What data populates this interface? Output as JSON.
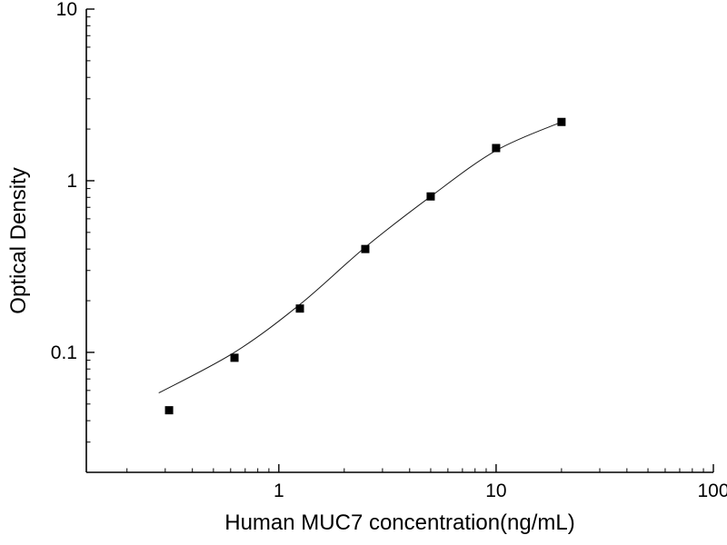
{
  "chart_data": {
    "type": "scatter",
    "title": "",
    "xlabel": "Human MUC7 concentration(ng/mL)",
    "ylabel": "Optical Density",
    "x_scale": "log",
    "y_scale": "log",
    "xlim": [
      0.13,
      100
    ],
    "ylim": [
      0.02,
      10
    ],
    "x_major_ticks": [
      1,
      10,
      100
    ],
    "y_major_ticks": [
      0.1,
      1,
      10
    ],
    "x_tick_labels": [
      "1",
      "10",
      "100"
    ],
    "y_tick_labels": [
      "10",
      "1",
      "0.1"
    ],
    "grid": false,
    "legend": "none",
    "series": [
      {
        "name": "standard-points",
        "marker": "square",
        "marker_size": 9,
        "color": "#000000",
        "x": [
          0.3125,
          0.625,
          1.25,
          2.5,
          5,
          10,
          20
        ],
        "y": [
          0.046,
          0.093,
          0.18,
          0.4,
          0.81,
          1.55,
          2.2
        ]
      }
    ],
    "fit_curve": {
      "name": "fitted-standard-curve",
      "color": "#1a1a1a",
      "x": [
        0.28,
        0.625,
        1.25,
        2.5,
        5,
        10,
        20
      ],
      "y": [
        0.058,
        0.1,
        0.19,
        0.41,
        0.81,
        1.5,
        2.2
      ]
    },
    "colors": {
      "background": "#ffffff",
      "axis": "#000000",
      "marker": "#000000",
      "curve": "#1a1a1a"
    }
  }
}
